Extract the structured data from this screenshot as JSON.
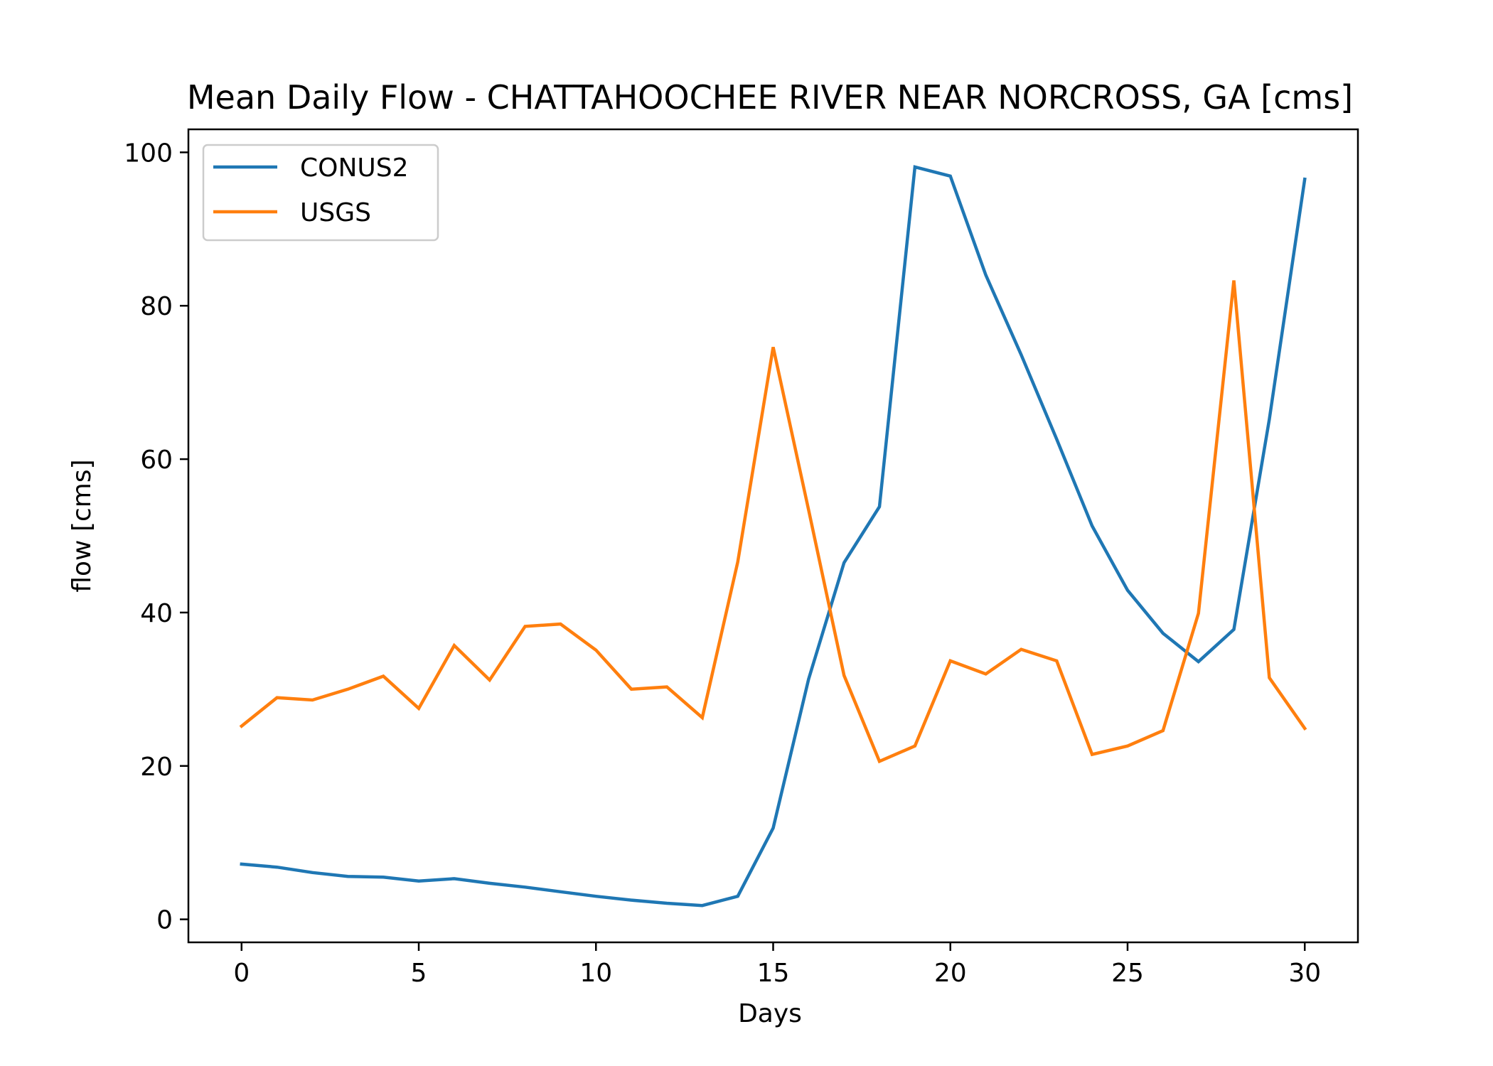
{
  "chart_data": {
    "type": "line",
    "title": "Mean Daily Flow - CHATTAHOOCHEE RIVER NEAR NORCROSS, GA [cms]",
    "xlabel": "Days",
    "ylabel": "flow [cms]",
    "x": [
      0,
      1,
      2,
      3,
      4,
      5,
      6,
      7,
      8,
      9,
      10,
      11,
      12,
      13,
      14,
      15,
      16,
      17,
      18,
      19,
      20,
      21,
      22,
      23,
      24,
      25,
      26,
      27,
      28,
      29,
      30
    ],
    "series": [
      {
        "name": "CONUS2",
        "color": "#1f77b4",
        "values": [
          7.2,
          6.8,
          6.1,
          5.6,
          5.5,
          5.0,
          5.3,
          4.7,
          4.2,
          3.6,
          3.0,
          2.5,
          2.1,
          1.8,
          3.0,
          11.9,
          31.3,
          46.5,
          53.8,
          98.1,
          96.9,
          84.0,
          73.6,
          62.6,
          51.3,
          42.9,
          37.3,
          33.6,
          37.8,
          65.2,
          96.5
        ]
      },
      {
        "name": "USGS",
        "color": "#ff7f0e",
        "values": [
          25.2,
          28.9,
          28.6,
          30.0,
          31.7,
          27.5,
          35.7,
          31.2,
          38.2,
          38.5,
          35.1,
          30.0,
          30.3,
          26.3,
          46.6,
          74.6,
          53.4,
          31.8,
          20.6,
          22.6,
          33.7,
          32.0,
          35.2,
          33.7,
          21.5,
          22.6,
          24.6,
          39.9,
          83.3,
          31.5,
          24.9
        ]
      }
    ],
    "xlim": [
      -1.5,
      31.5
    ],
    "ylim": [
      -3,
      103
    ],
    "xticks": [
      0,
      5,
      10,
      15,
      20,
      25,
      30
    ],
    "yticks": [
      0,
      20,
      40,
      60,
      80,
      100
    ],
    "legend_position": "top-left",
    "grid": false
  }
}
